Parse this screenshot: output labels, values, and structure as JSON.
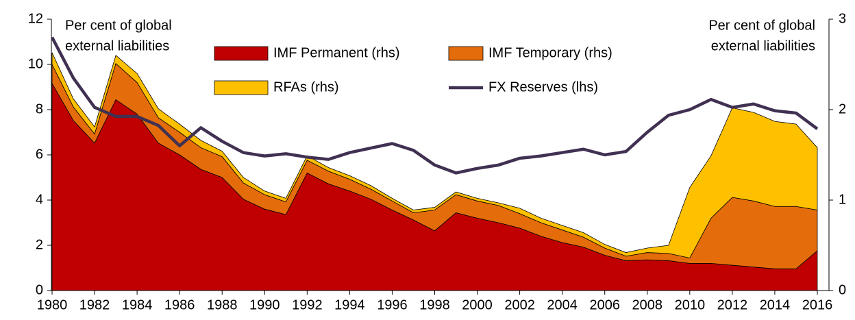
{
  "chart_data": {
    "type": "stacked-area-line",
    "annotations": [
      [
        "Per cent  of global",
        "external liabilities"
      ],
      [
        "Per cent  of global",
        "external liabilities"
      ]
    ],
    "x": [
      1980,
      1981,
      1982,
      1983,
      1984,
      1985,
      1986,
      1987,
      1988,
      1989,
      1990,
      1991,
      1992,
      1993,
      1994,
      1995,
      1996,
      1997,
      1998,
      1999,
      2000,
      2001,
      2002,
      2003,
      2004,
      2005,
      2006,
      2007,
      2008,
      2009,
      2010,
      2011,
      2012,
      2013,
      2014,
      2015,
      2016
    ],
    "xlim": [
      1980,
      2016
    ],
    "xticks": [
      1980,
      1982,
      1984,
      1986,
      1988,
      1990,
      1992,
      1994,
      1996,
      1998,
      2000,
      2002,
      2004,
      2006,
      2008,
      2010,
      2012,
      2014,
      2016
    ],
    "ylim": [
      0,
      12
    ],
    "yticks": [
      0,
      2,
      4,
      6,
      8,
      10,
      12
    ],
    "y2lim": [
      0,
      3
    ],
    "y2ticks": [
      0,
      1,
      2,
      3
    ],
    "series": [
      {
        "name": "IMF Permanent (rhs)",
        "color": "#c00000",
        "axis": "y2",
        "kind": "area",
        "values": [
          2.29,
          1.88,
          1.63,
          2.11,
          1.95,
          1.63,
          1.5,
          1.34,
          1.25,
          1.01,
          0.9,
          0.84,
          1.3,
          1.18,
          1.1,
          1.01,
          0.89,
          0.78,
          0.66,
          0.86,
          0.8,
          0.75,
          0.69,
          0.6,
          0.53,
          0.48,
          0.39,
          0.33,
          0.34,
          0.33,
          0.3,
          0.3,
          0.28,
          0.26,
          0.24,
          0.24,
          0.44
        ]
      },
      {
        "name": "IMF Temporary (rhs)",
        "color": "#e46c0a",
        "axis": "y2",
        "kind": "area",
        "values": [
          0.21,
          0.15,
          0.1,
          0.4,
          0.35,
          0.28,
          0.25,
          0.24,
          0.23,
          0.18,
          0.16,
          0.14,
          0.14,
          0.14,
          0.13,
          0.11,
          0.1,
          0.08,
          0.23,
          0.2,
          0.19,
          0.19,
          0.16,
          0.15,
          0.14,
          0.11,
          0.08,
          0.05,
          0.08,
          0.08,
          0.06,
          0.5,
          0.75,
          0.73,
          0.69,
          0.69,
          0.45
        ]
      },
      {
        "name": "RFAs (rhs)",
        "color": "#ffc000",
        "axis": "y2",
        "kind": "area",
        "values": [
          0.13,
          0.09,
          0.08,
          0.09,
          0.1,
          0.1,
          0.09,
          0.08,
          0.06,
          0.06,
          0.04,
          0.04,
          0.05,
          0.04,
          0.04,
          0.04,
          0.03,
          0.03,
          0.03,
          0.03,
          0.03,
          0.03,
          0.06,
          0.05,
          0.05,
          0.05,
          0.04,
          0.04,
          0.05,
          0.09,
          0.78,
          0.69,
          0.99,
          0.98,
          0.94,
          0.91,
          0.69
        ]
      },
      {
        "name": "FX Reserves (lhs)",
        "color": "#403152",
        "kind": "line",
        "values": [
          11.2,
          9.4,
          8.1,
          7.7,
          7.7,
          7.3,
          6.4,
          7.2,
          6.6,
          6.1,
          5.95,
          6.05,
          5.9,
          5.8,
          6.1,
          6.3,
          6.5,
          6.2,
          5.55,
          5.2,
          5.4,
          5.55,
          5.85,
          5.95,
          6.1,
          6.25,
          6.0,
          6.15,
          7.0,
          7.75,
          8.0,
          8.45,
          8.1,
          8.25,
          7.95,
          7.85,
          7.15
        ]
      }
    ]
  }
}
